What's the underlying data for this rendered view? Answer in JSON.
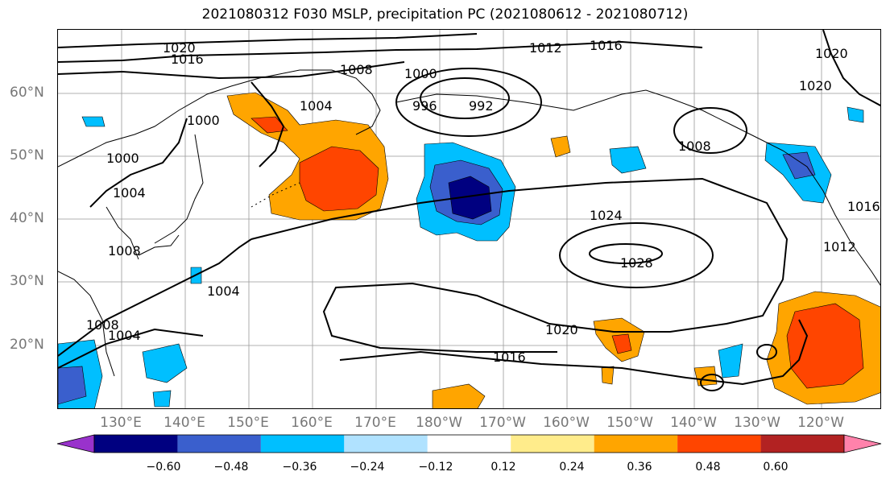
{
  "title": "2021080312 F030 MSLP, precipitation PC (2021080612 - 2021080712)",
  "lat_labels": [
    "60°N",
    "50°N",
    "40°N",
    "30°N",
    "20°N"
  ],
  "lon_labels": [
    "130°E",
    "140°E",
    "150°E",
    "160°E",
    "170°E",
    "180°W",
    "170°W",
    "160°W",
    "150°W",
    "140°W",
    "130°W",
    "120°W"
  ],
  "isobar_labels": [
    "1020",
    "1016",
    "1012",
    "1016",
    "1008",
    "1000",
    "996",
    "992",
    "1004",
    "1000",
    "1008",
    "1000",
    "1004",
    "1008",
    "1004",
    "1008",
    "1004",
    "1024",
    "1028",
    "1020",
    "1016",
    "1016",
    "1012",
    "1020",
    "1020"
  ],
  "colorbar": {
    "ticks": [
      "−0.60",
      "−0.48",
      "−0.36",
      "−0.24",
      "−0.12",
      "0.12",
      "0.24",
      "0.36",
      "0.48",
      "0.60"
    ],
    "colors": [
      "#9932cc",
      "#000080",
      "#3a5fcd",
      "#00bfff",
      "#b0e2ff",
      "#ffffff",
      "#ffec8b",
      "#ffa500",
      "#ff4500",
      "#b22222",
      "#ff82ab"
    ]
  }
}
